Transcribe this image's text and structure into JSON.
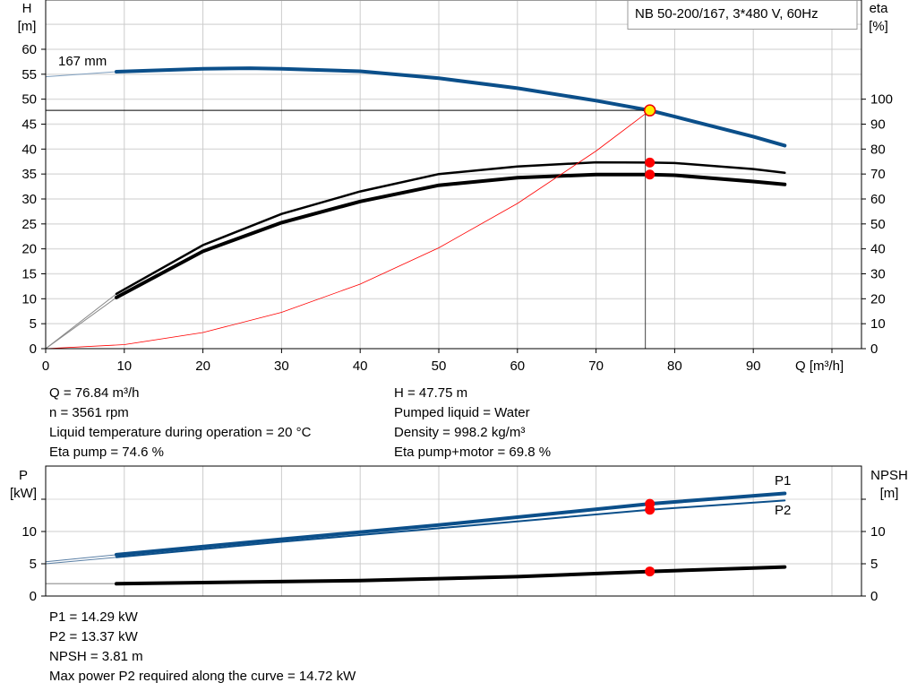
{
  "chart_data": [
    {
      "type": "line",
      "legend_box": "NB 50-200/167, 3*480 V, 60Hz",
      "curve_label": "167 mm",
      "xlabel": "Q [m³/h]",
      "ylabel_left": [
        "H",
        "[m]"
      ],
      "ylabel_right": [
        "eta",
        "[%]"
      ],
      "xlim": [
        0,
        104
      ],
      "ylim_left": [
        0,
        70
      ],
      "ylim_right": [
        0,
        140
      ],
      "x_ticks": [
        0,
        10,
        20,
        30,
        40,
        50,
        60,
        70,
        80,
        90
      ],
      "y_ticks_left": [
        0,
        5,
        10,
        15,
        20,
        25,
        30,
        35,
        40,
        45,
        50,
        55,
        60
      ],
      "y_ticks_right": [
        0,
        10,
        20,
        30,
        40,
        50,
        60,
        70,
        80,
        90,
        100
      ],
      "grid": true,
      "series": [
        {
          "axis": "H",
          "color": "#0b4f8a",
          "x": [
            0,
            9,
            20,
            26,
            30,
            40,
            50,
            60,
            70,
            76.84,
            80,
            90,
            94
          ],
          "y": [
            54.5,
            55.5,
            56.1,
            56.2,
            56.1,
            55.6,
            54.2,
            52.2,
            49.7,
            47.75,
            46.5,
            42.5,
            40.7
          ]
        },
        {
          "axis": "eta",
          "color": "#000000",
          "x": [
            0,
            9,
            20,
            30,
            40,
            50,
            60,
            70,
            76.84,
            80,
            90,
            94
          ],
          "y": [
            0,
            22,
            41.5,
            54,
            63,
            70,
            73,
            74.7,
            74.6,
            74.4,
            72,
            70.5
          ]
        },
        {
          "axis": "eta",
          "color": "#000000",
          "x": [
            0,
            9,
            20,
            30,
            40,
            50,
            60,
            70,
            76.84,
            80,
            90,
            94
          ],
          "y": [
            0,
            20.5,
            39,
            50.5,
            59,
            65.5,
            68.5,
            69.8,
            69.8,
            69.5,
            67,
            65.8
          ]
        },
        {
          "axis": "H",
          "color": "#ff0000",
          "x": [
            0,
            10,
            20,
            30,
            40,
            50,
            60,
            70,
            76.84
          ],
          "y": [
            0,
            0.81,
            3.24,
            7.28,
            12.94,
            20.2,
            29.1,
            39.6,
            47.75
          ]
        }
      ],
      "operating_point": {
        "Q": 76.84,
        "H": 47.75,
        "eta_pump": 74.6,
        "eta_pump_motor": 69.8
      }
    },
    {
      "type": "line",
      "ylabel_left": [
        "P",
        "[kW]"
      ],
      "ylabel_right": [
        "NPSH",
        "[m]"
      ],
      "xlim": [
        0,
        104
      ],
      "ylim": [
        0,
        20
      ],
      "y_ticks": [
        0,
        5,
        10
      ],
      "grid": true,
      "series": [
        {
          "name": "P1",
          "color": "#0b4f8a",
          "x": [
            0,
            9,
            30,
            50,
            76.84,
            94
          ],
          "y": [
            5.3,
            6.4,
            8.8,
            11.0,
            14.29,
            15.9
          ]
        },
        {
          "name": "P2",
          "color": "#0b4f8a",
          "x": [
            0,
            9,
            30,
            50,
            76.84,
            94
          ],
          "y": [
            5.0,
            6.0,
            8.4,
            10.5,
            13.37,
            14.8
          ]
        },
        {
          "axis": "NPSH",
          "color": "#000000",
          "x": [
            0,
            9,
            40,
            60,
            76.84,
            94
          ],
          "y": [
            1.9,
            1.9,
            2.4,
            3.0,
            3.81,
            4.5
          ]
        }
      ]
    }
  ],
  "info_top": {
    "left": [
      "Q = 76.84 m³/h",
      "n = 3561 rpm",
      "Liquid temperature during operation = 20 °C",
      "Eta pump = 74.6 %"
    ],
    "right": [
      "H = 47.75 m",
      "Pumped liquid = Water",
      "Density = 998.2 kg/m³",
      "Eta pump+motor = 69.8 %"
    ]
  },
  "info_bottom": [
    "P1 = 14.29 kW",
    "P2 = 13.37 kW",
    "NPSH = 3.81 m",
    "Max power P2 required along the curve = 14.72 kW"
  ]
}
